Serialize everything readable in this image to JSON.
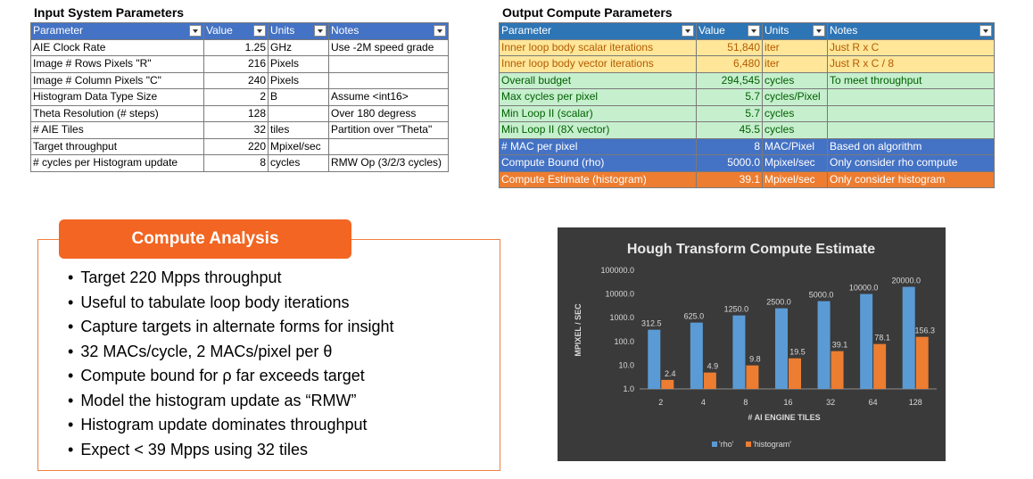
{
  "input_table": {
    "title": "Input System Parameters",
    "headers": [
      "Parameter",
      "Value",
      "Units",
      "Notes"
    ],
    "rows": [
      [
        "AIE Clock Rate",
        "1.25",
        "GHz",
        "Use -2M speed grade"
      ],
      [
        "Image # Rows Pixels \"R\"",
        "216",
        "Pixels",
        ""
      ],
      [
        "Image # Column Pixels \"C\"",
        "240",
        "Pixels",
        ""
      ],
      [
        "Histogram Data Type Size",
        "2",
        "B",
        "Assume <int16>"
      ],
      [
        "Theta Resolution (# steps)",
        "128",
        "",
        "Over 180 degress"
      ],
      [
        "# AIE Tiles",
        "32",
        "tiles",
        "Partition over \"Theta\""
      ],
      [
        "Target throughput",
        "220",
        "Mpixel/sec",
        ""
      ],
      [
        "# cycles per Histogram update",
        "8",
        "cycles",
        "RMW Op (3/2/3 cycles)"
      ]
    ]
  },
  "output_table": {
    "title": "Output Compute Parameters",
    "headers": [
      "Parameter",
      "Value",
      "Units",
      "Notes"
    ],
    "rows": [
      [
        "Inner loop body scalar iterations",
        "51,840",
        "iter",
        "Just R x C"
      ],
      [
        "Inner loop body vector iterations",
        "6,480",
        "iter",
        "Just R x C / 8"
      ],
      [
        "Overall budget",
        "294,545",
        "cycles",
        "To meet throughput"
      ],
      [
        "Max cycles per pixel",
        "5.7",
        "cycles/Pixel",
        ""
      ],
      [
        "Min Loop II (scalar)",
        "5.7",
        "cycles",
        ""
      ],
      [
        "Min Loop II (8X vector)",
        "45.5",
        "cycles",
        ""
      ],
      [
        "# MAC per pixel",
        "8",
        "MAC/Pixel",
        "Based on algorithm"
      ],
      [
        "Compute Bound (rho)",
        "5000.0",
        "Mpixel/sec",
        "Only consider rho compute"
      ],
      [
        "Compute Estimate (histogram)",
        "39.1",
        "Mpixel/sec",
        "Only consider histogram"
      ]
    ],
    "row_styles": [
      "yel",
      "yel",
      "grn",
      "grn",
      "grn",
      "grn",
      "blu",
      "blu",
      "org"
    ]
  },
  "analysis": {
    "title": "Compute Analysis",
    "bullets": [
      "Target 220 Mpps throughput",
      "Useful to tabulate loop body iterations",
      "Capture targets in alternate forms for insight",
      "32 MACs/cycle, 2 MACs/pixel per θ",
      "Compute bound for ρ far exceeds target",
      "Model the histogram update as “RMW”",
      "Histogram update dominates throughput",
      "Expect < 39 Mpps using 32 tiles"
    ]
  },
  "chart_data": {
    "type": "bar",
    "title": "Hough Transform Compute Estimate",
    "xlabel": "# AI ENGINE TILES",
    "ylabel": "MPIXEL / SEC",
    "scale": "log",
    "ylim": [
      1,
      100000
    ],
    "yticks": [
      "100000.0",
      "10000.0",
      "1000.0",
      "100.0",
      "10.0",
      "1.0"
    ],
    "categories": [
      "2",
      "4",
      "8",
      "16",
      "32",
      "64",
      "128"
    ],
    "series": [
      {
        "name": "'rho'",
        "color": "#5b9bd5",
        "values": [
          312.5,
          625.0,
          1250.0,
          2500.0,
          5000.0,
          10000.0,
          20000.0
        ],
        "labels": [
          "312.5",
          "625.0",
          "1250.0",
          "2500.0",
          "5000.0",
          "10000.0",
          "20000.0"
        ]
      },
      {
        "name": "'histogram'",
        "color": "#ed7d31",
        "values": [
          2.4,
          4.9,
          9.8,
          19.5,
          39.1,
          78.1,
          156.3
        ],
        "labels": [
          "2.4",
          "4.9",
          "9.8",
          "19.5",
          "39.1",
          "78.1",
          "156.3"
        ]
      }
    ],
    "legend": "bottom",
    "grid": false
  }
}
